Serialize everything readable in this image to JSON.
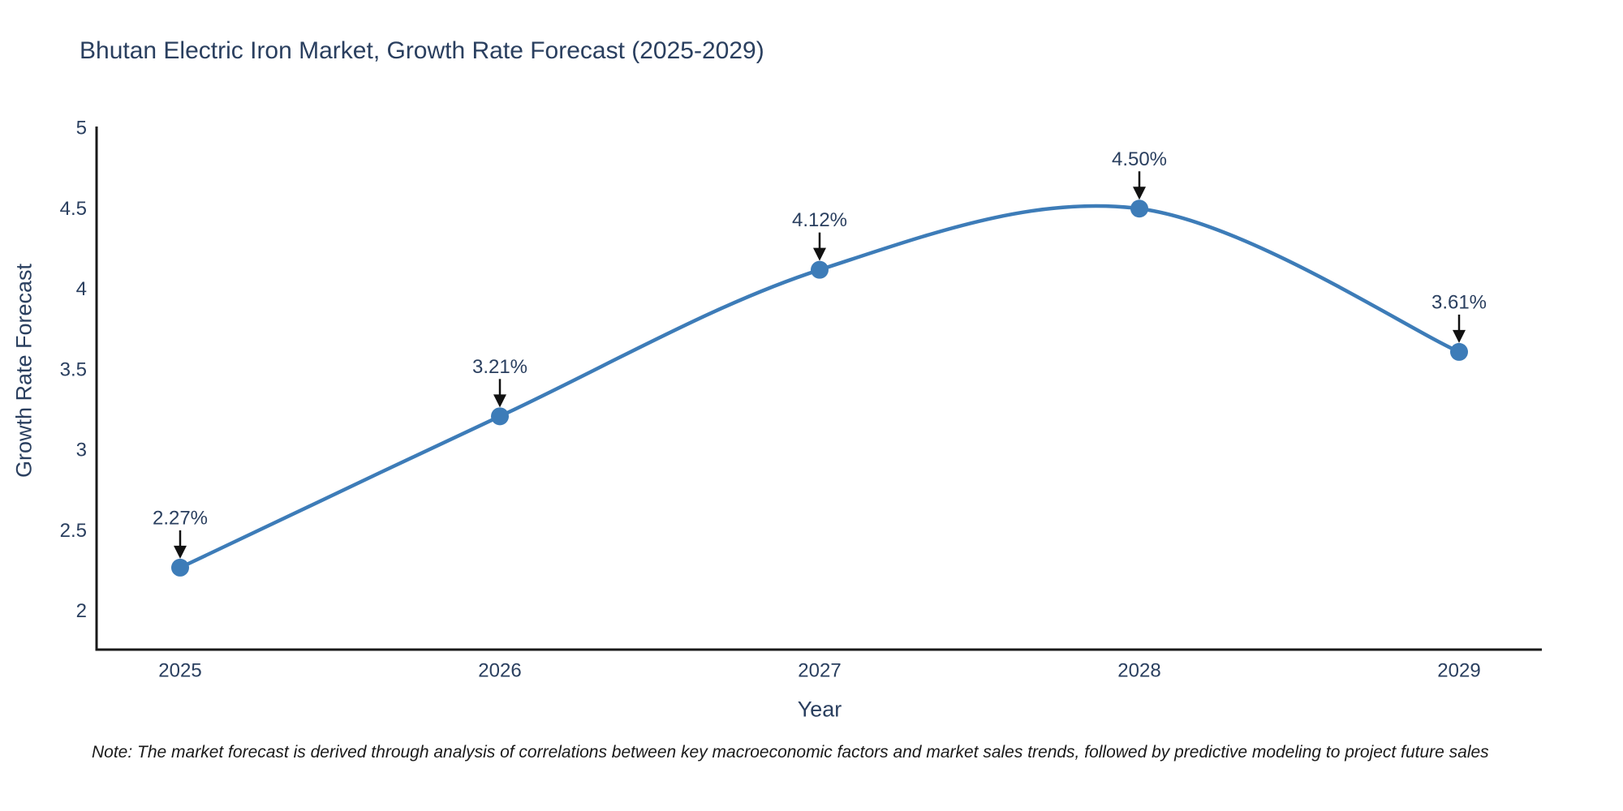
{
  "chart_data": {
    "type": "line",
    "title": "Bhutan Electric Iron Market, Growth Rate Forecast (2025-2029)",
    "xlabel": "Year",
    "ylabel": "Growth Rate Forecast",
    "note": "Note: The market forecast is derived through analysis of correlations between key macroeconomic factors and market sales trends, followed by predictive modeling to project future sales",
    "categories": [
      2025,
      2026,
      2027,
      2028,
      2029
    ],
    "values": [
      2.27,
      3.21,
      4.12,
      4.5,
      3.61
    ],
    "point_labels": [
      "2.27%",
      "3.21%",
      "4.12%",
      "4.50%",
      "3.61%"
    ],
    "y_ticks": [
      5,
      4.5,
      4,
      3.5,
      3,
      2.5,
      2
    ],
    "ylim": [
      1.78,
      5
    ],
    "line_shape": "spline",
    "grid": false,
    "legend": "none",
    "colors": {
      "line": "#3d7cb8",
      "marker": "#3d7cb8",
      "axis": "#1a1a1a",
      "text": "#2a3f5f",
      "annotation_arrow": "#111111",
      "background": "#ffffff"
    }
  }
}
